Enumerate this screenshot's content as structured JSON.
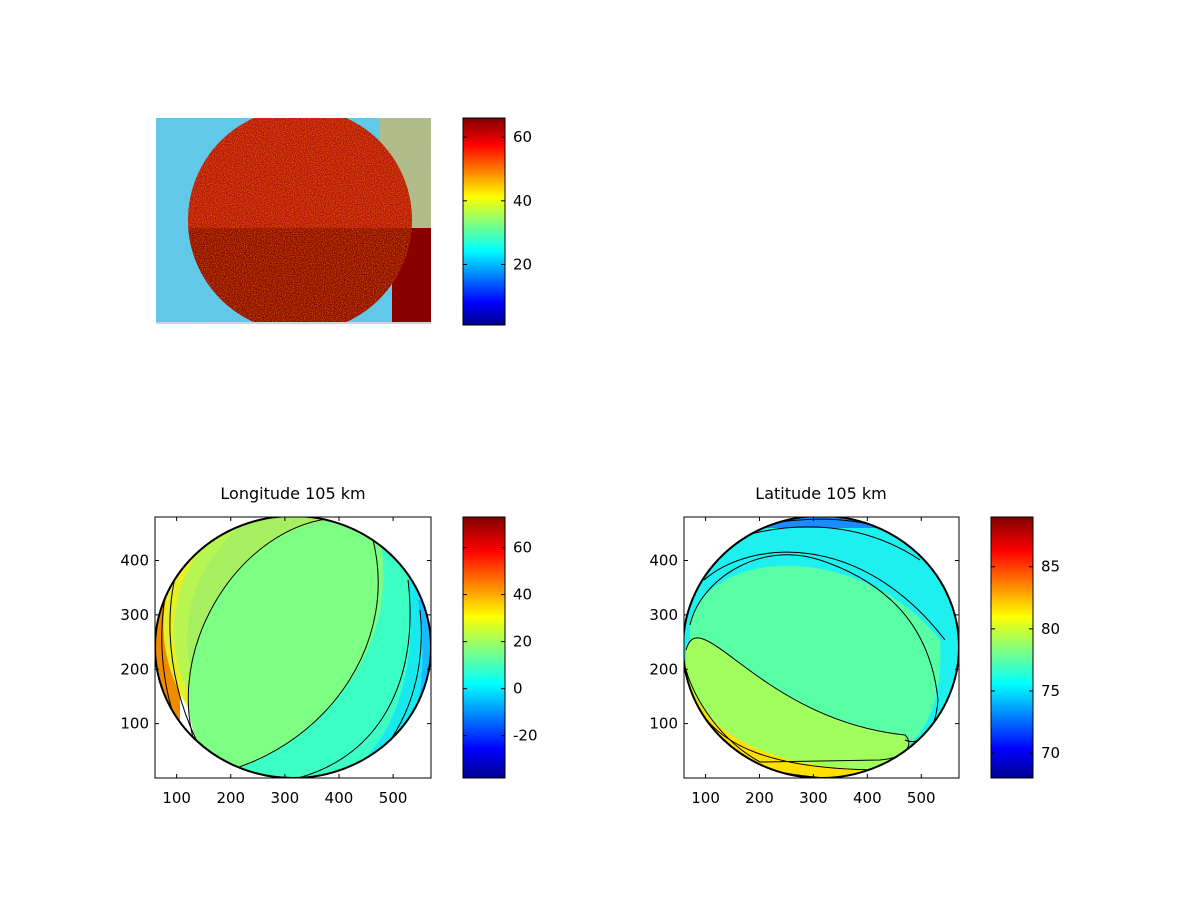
{
  "chart_data": [
    {
      "type": "heatmap",
      "title": "",
      "axes_visible": false,
      "description_of_field": "noisy all-sky image: bright disk on mid-level background",
      "disk_value": 65,
      "background_value": 30,
      "color_range": [
        1,
        66
      ],
      "colorbar": {
        "ticks": [
          20,
          40,
          60
        ],
        "colormap": "jet"
      }
    },
    {
      "type": "heatmap",
      "title": "Longitude 105 km",
      "xticks": [
        100,
        200,
        300,
        400,
        500
      ],
      "yticks": [
        100,
        200,
        300,
        400
      ],
      "xlim": [
        60,
        570
      ],
      "ylim": [
        0,
        480
      ],
      "circle": {
        "center": [
          315,
          240
        ],
        "radius": 255
      },
      "contour_levels": [
        70,
        50,
        40,
        30,
        20,
        10,
        0,
        -10,
        -20,
        -30
      ],
      "color_range": [
        -38,
        73
      ],
      "colorbar": {
        "ticks": [
          -20,
          0,
          20,
          40,
          60
        ],
        "colormap": "jet"
      }
    },
    {
      "type": "heatmap",
      "title": "Latitude 105 km",
      "xticks": [
        100,
        200,
        300,
        400,
        500
      ],
      "yticks": [
        100,
        200,
        300,
        400
      ],
      "xlim": [
        60,
        570
      ],
      "ylim": [
        0,
        480
      ],
      "circle": {
        "center": [
          315,
          240
        ],
        "radius": 255
      },
      "contour_levels": [
        70,
        72,
        74,
        76,
        78,
        80,
        82,
        84,
        86,
        88
      ],
      "color_range": [
        68,
        89
      ],
      "colorbar": {
        "ticks": [
          70,
          75,
          80,
          85
        ],
        "colormap": "jet"
      }
    }
  ]
}
